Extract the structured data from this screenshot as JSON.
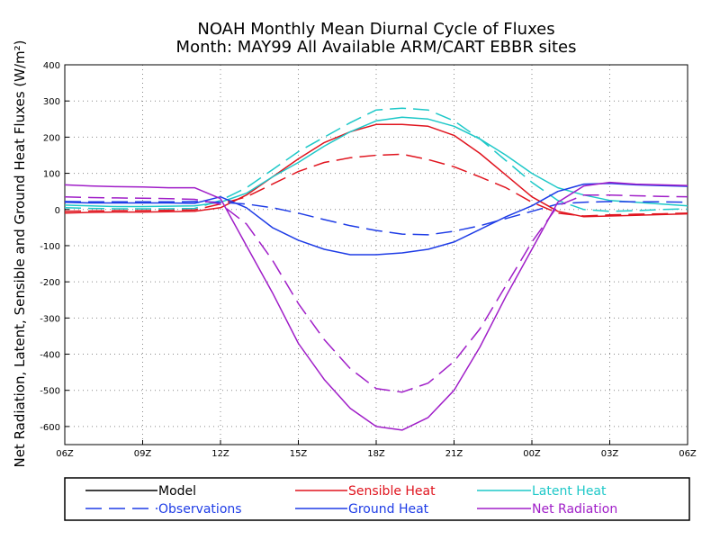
{
  "chart_data": {
    "type": "line",
    "title": "NOAH Monthly Mean Diurnal Cycle of Fluxes",
    "subtitle": "Month: MAY99 All Available ARM/CART EBBR sites",
    "xlabel": "",
    "ylabel": "Net Radiation, Latent, Sensible and Ground Heat Fluxes (W/m²)",
    "ylim": [
      -650,
      400
    ],
    "yticks": [
      "400",
      "300",
      "200",
      "100",
      "0",
      "-100",
      "-200",
      "-300",
      "-400",
      "-500",
      "-600"
    ],
    "yticks_values": [
      400,
      300,
      200,
      100,
      0,
      -100,
      -200,
      -300,
      -400,
      -500,
      -600
    ],
    "xticks": [
      "06Z",
      "09Z",
      "12Z",
      "15Z",
      "18Z",
      "21Z",
      "00Z",
      "03Z",
      "06Z"
    ],
    "x_hours": [
      0,
      1,
      2,
      3,
      4,
      5,
      6,
      7,
      8,
      9,
      10,
      11,
      12,
      13,
      14,
      15,
      16,
      17,
      18,
      19,
      20,
      21,
      22,
      23,
      24
    ],
    "grid": "dotted",
    "series": [
      {
        "name": "Sensible Heat",
        "style": "Model",
        "color": "#e0141e",
        "values": [
          -10,
          -8,
          -7,
          -7,
          -6,
          -5,
          5,
          40,
          90,
          140,
          185,
          215,
          235,
          235,
          230,
          205,
          155,
          95,
          35,
          -5,
          -20,
          -18,
          -16,
          -14,
          -12
        ]
      },
      {
        "name": "Sensible Heat",
        "style": "Observations",
        "color": "#e0141e",
        "values": [
          -5,
          -4,
          -3,
          -3,
          -2,
          -1,
          15,
          35,
          70,
          105,
          130,
          143,
          150,
          153,
          138,
          118,
          90,
          60,
          20,
          -10,
          -18,
          -15,
          -13,
          -12,
          -10
        ]
      },
      {
        "name": "Latent Heat",
        "style": "Model",
        "color": "#1ec8c8",
        "values": [
          12,
          10,
          8,
          8,
          9,
          10,
          20,
          45,
          90,
          130,
          175,
          215,
          245,
          255,
          250,
          230,
          195,
          150,
          100,
          60,
          40,
          25,
          20,
          15,
          10
        ]
      },
      {
        "name": "Latent Heat",
        "style": "Observations",
        "color": "#1ec8c8",
        "values": [
          5,
          3,
          2,
          2,
          2,
          3,
          25,
          60,
          110,
          160,
          200,
          240,
          275,
          280,
          275,
          245,
          195,
          135,
          75,
          25,
          0,
          -5,
          -3,
          0,
          2
        ]
      },
      {
        "name": "Ground Heat",
        "style": "Model",
        "color": "#1e3ce6",
        "values": [
          20,
          18,
          18,
          18,
          18,
          17,
          35,
          5,
          -50,
          -85,
          -110,
          -125,
          -125,
          -120,
          -110,
          -90,
          -55,
          -20,
          10,
          50,
          70,
          72,
          68,
          66,
          64
        ]
      },
      {
        "name": "Ground Heat",
        "style": "Observations",
        "color": "#1e3ce6",
        "values": [
          22,
          21,
          21,
          21,
          21,
          22,
          20,
          15,
          5,
          -10,
          -28,
          -45,
          -58,
          -68,
          -70,
          -60,
          -45,
          -25,
          -5,
          15,
          20,
          22,
          21,
          21,
          20
        ]
      },
      {
        "name": "Net Radiation",
        "style": "Model",
        "color": "#a01ec8",
        "values": [
          68,
          65,
          63,
          62,
          60,
          60,
          30,
          -100,
          -230,
          -370,
          -470,
          -550,
          -600,
          -610,
          -575,
          -500,
          -380,
          -240,
          -110,
          20,
          65,
          75,
          70,
          68,
          66
        ]
      },
      {
        "name": "Net Radiation",
        "style": "Observations",
        "color": "#a01ec8",
        "values": [
          35,
          33,
          32,
          31,
          30,
          28,
          15,
          -40,
          -140,
          -260,
          -360,
          -440,
          -495,
          -505,
          -480,
          -420,
          -330,
          -210,
          -90,
          10,
          40,
          40,
          38,
          36,
          35
        ]
      }
    ]
  },
  "legend": {
    "model": "Model",
    "observations": "Observations",
    "sensible": "Sensible Heat",
    "latent": "Latent Heat",
    "ground": "Ground Heat",
    "netrad": "Net Radiation"
  },
  "colors": {
    "sensible": "#e0141e",
    "latent": "#1ec8c8",
    "ground": "#1e3ce6",
    "netrad": "#a01ec8",
    "model": "#000000",
    "observations": "#1e3ce6"
  }
}
